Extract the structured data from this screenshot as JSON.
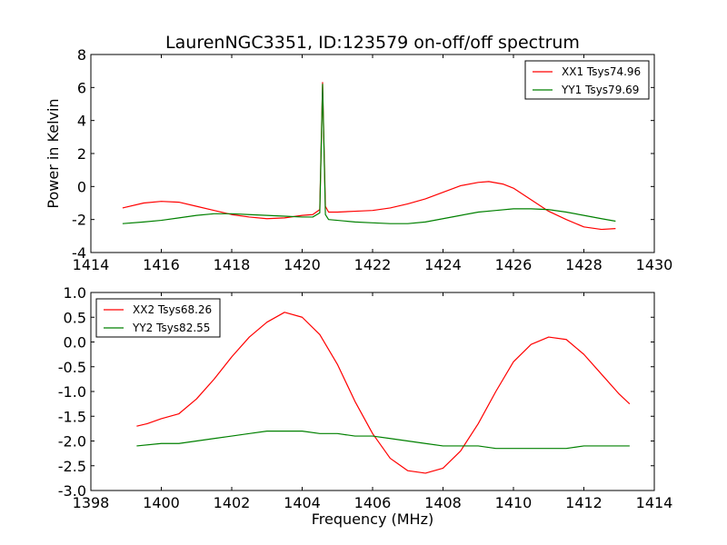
{
  "figure": {
    "title": "LaurenNGC3351, ID:123579 on-off/off spectrum"
  },
  "chart_data": [
    {
      "type": "line",
      "title": "LaurenNGC3351, ID:123579 on-off/off spectrum",
      "xlabel": "",
      "ylabel": "Power in Kelvin",
      "xlim": [
        1414,
        1430
      ],
      "ylim": [
        -4,
        8
      ],
      "xticks": [
        1414,
        1416,
        1418,
        1420,
        1422,
        1424,
        1426,
        1428,
        1430
      ],
      "yticks": [
        -4,
        -2,
        0,
        2,
        4,
        6,
        8
      ],
      "legend": "top-right",
      "grid": false,
      "series": [
        {
          "name": "XX1 Tsys74.96",
          "color": "#ff0000",
          "x": [
            1414.9,
            1415.5,
            1416.0,
            1416.5,
            1417.0,
            1417.5,
            1418.0,
            1418.5,
            1419.0,
            1419.5,
            1420.0,
            1420.3,
            1420.5,
            1420.58,
            1420.62,
            1420.66,
            1420.75,
            1421.0,
            1421.5,
            1422.0,
            1422.5,
            1423.0,
            1423.5,
            1424.0,
            1424.5,
            1425.0,
            1425.3,
            1425.7,
            1426.0,
            1426.5,
            1427.0,
            1427.5,
            1428.0,
            1428.5,
            1428.9
          ],
          "y": [
            -1.3,
            -1.0,
            -0.9,
            -0.95,
            -1.2,
            -1.45,
            -1.7,
            -1.85,
            -1.95,
            -1.9,
            -1.75,
            -1.7,
            -1.4,
            6.3,
            2.5,
            -1.2,
            -1.55,
            -1.55,
            -1.5,
            -1.45,
            -1.3,
            -1.05,
            -0.75,
            -0.35,
            0.05,
            0.25,
            0.3,
            0.15,
            -0.1,
            -0.8,
            -1.5,
            -2.0,
            -2.45,
            -2.6,
            -2.55
          ]
        },
        {
          "name": "YY1 Tsys79.69",
          "color": "#008000",
          "x": [
            1414.9,
            1415.5,
            1416.0,
            1416.5,
            1417.0,
            1417.5,
            1418.0,
            1418.5,
            1419.0,
            1419.5,
            1420.0,
            1420.3,
            1420.5,
            1420.58,
            1420.62,
            1420.66,
            1420.75,
            1421.0,
            1421.5,
            1422.0,
            1422.5,
            1423.0,
            1423.5,
            1424.0,
            1424.5,
            1425.0,
            1425.5,
            1426.0,
            1426.5,
            1427.0,
            1427.5,
            1428.0,
            1428.5,
            1428.9
          ],
          "y": [
            -2.25,
            -2.15,
            -2.05,
            -1.9,
            -1.75,
            -1.65,
            -1.65,
            -1.7,
            -1.75,
            -1.8,
            -1.85,
            -1.85,
            -1.6,
            6.2,
            2.4,
            -1.7,
            -2.0,
            -2.05,
            -2.15,
            -2.2,
            -2.25,
            -2.25,
            -2.15,
            -1.95,
            -1.75,
            -1.55,
            -1.45,
            -1.35,
            -1.35,
            -1.4,
            -1.55,
            -1.75,
            -1.95,
            -2.1
          ]
        }
      ]
    },
    {
      "type": "line",
      "title": "",
      "xlabel": "Frequency (MHz)",
      "ylabel": "",
      "xlim": [
        1398,
        1414
      ],
      "ylim": [
        -3.0,
        1.0
      ],
      "xticks": [
        1398,
        1400,
        1402,
        1404,
        1406,
        1408,
        1410,
        1412,
        1414
      ],
      "yticks": [
        -3.0,
        -2.5,
        -2.0,
        -1.5,
        -1.0,
        -0.5,
        0.0,
        0.5,
        1.0
      ],
      "legend": "top-left",
      "grid": false,
      "series": [
        {
          "name": "XX2 Tsys68.26",
          "color": "#ff0000",
          "x": [
            1399.3,
            1399.6,
            1400.0,
            1400.5,
            1401.0,
            1401.5,
            1402.0,
            1402.5,
            1403.0,
            1403.5,
            1404.0,
            1404.5,
            1405.0,
            1405.5,
            1406.0,
            1406.5,
            1407.0,
            1407.5,
            1408.0,
            1408.5,
            1409.0,
            1409.5,
            1410.0,
            1410.5,
            1411.0,
            1411.5,
            1412.0,
            1412.5,
            1413.0,
            1413.3
          ],
          "y": [
            -1.7,
            -1.65,
            -1.55,
            -1.45,
            -1.15,
            -0.75,
            -0.3,
            0.1,
            0.4,
            0.6,
            0.5,
            0.15,
            -0.45,
            -1.2,
            -1.85,
            -2.35,
            -2.6,
            -2.65,
            -2.55,
            -2.2,
            -1.65,
            -1.0,
            -0.4,
            -0.05,
            0.1,
            0.05,
            -0.25,
            -0.65,
            -1.05,
            -1.25
          ]
        },
        {
          "name": "YY2 Tsys82.55",
          "color": "#008000",
          "x": [
            1399.3,
            1400.0,
            1400.5,
            1401.0,
            1401.5,
            1402.0,
            1402.5,
            1403.0,
            1403.5,
            1404.0,
            1404.5,
            1405.0,
            1405.5,
            1406.0,
            1406.5,
            1407.0,
            1407.5,
            1408.0,
            1408.5,
            1409.0,
            1409.5,
            1410.0,
            1410.5,
            1411.0,
            1411.5,
            1412.0,
            1412.5,
            1413.0,
            1413.3
          ],
          "y": [
            -2.1,
            -2.05,
            -2.05,
            -2.0,
            -1.95,
            -1.9,
            -1.85,
            -1.8,
            -1.8,
            -1.8,
            -1.85,
            -1.85,
            -1.9,
            -1.9,
            -1.95,
            -2.0,
            -2.05,
            -2.1,
            -2.1,
            -2.1,
            -2.15,
            -2.15,
            -2.15,
            -2.15,
            -2.15,
            -2.1,
            -2.1,
            -2.1,
            -2.1
          ]
        }
      ]
    }
  ]
}
